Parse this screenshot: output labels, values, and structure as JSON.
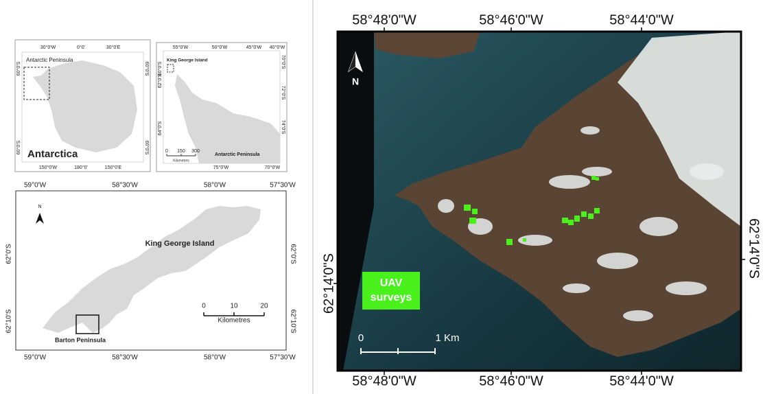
{
  "antarctica_map": {
    "top_labels": [
      "30°0'W",
      "0°0'",
      "30°0'E"
    ],
    "bottom_labels": [
      "150°0'W",
      "180°0'",
      "150°0'E"
    ],
    "left_labels": [
      "60°0'S",
      "60°0'S"
    ],
    "right_labels": [
      "60°0'S",
      "60°0'S"
    ],
    "inset_label": "Antarctic Peninsula",
    "title": "Antarctica"
  },
  "peninsula_map": {
    "top_labels": [
      "55°0'W",
      "50°0'W",
      "45°0'W",
      "40°0'W"
    ],
    "left_labels": [
      "60°0'S",
      "62°0'S",
      "64°0'S"
    ],
    "right_labels": [
      "70°0'S",
      "72°0'S",
      "74°0'S"
    ],
    "bottom_labels": [
      "75°0'W",
      "70°0'W"
    ],
    "inset_label": "King George Island",
    "title": "Antarctic Peninsula",
    "scale_labels": [
      "0",
      "150",
      "300"
    ],
    "scale_unit": "Kilometres"
  },
  "island_map": {
    "top_labels": [
      "59°0'W",
      "58°30'W",
      "58°0'W",
      "57°30'W"
    ],
    "bottom_labels": [
      "59°0'W",
      "58°30'W",
      "58°0'W",
      "57°30'W"
    ],
    "left_labels": [
      "62°0'S",
      "62°10'S"
    ],
    "right_labels": [
      "62°0'S",
      "62°10'S"
    ],
    "north": "N",
    "title": "King George Island",
    "inset_label": "Barton Peninsula",
    "scale_labels": [
      "0",
      "10",
      "20"
    ],
    "scale_unit": "Kilometres"
  },
  "satellite_map": {
    "top_labels": [
      "58°48'0\"W",
      "58°46'0\"W",
      "58°44'0\"W"
    ],
    "bottom_labels": [
      "58°48'0\"W",
      "58°46'0\"W",
      "58°44'0\"W"
    ],
    "left_label": "62°14'0\"S",
    "right_label": "62°14'0\"S",
    "north": "N",
    "legend_lines": [
      "UAV",
      "surveys"
    ],
    "scale_labels": [
      "0",
      "1 Km"
    ]
  }
}
